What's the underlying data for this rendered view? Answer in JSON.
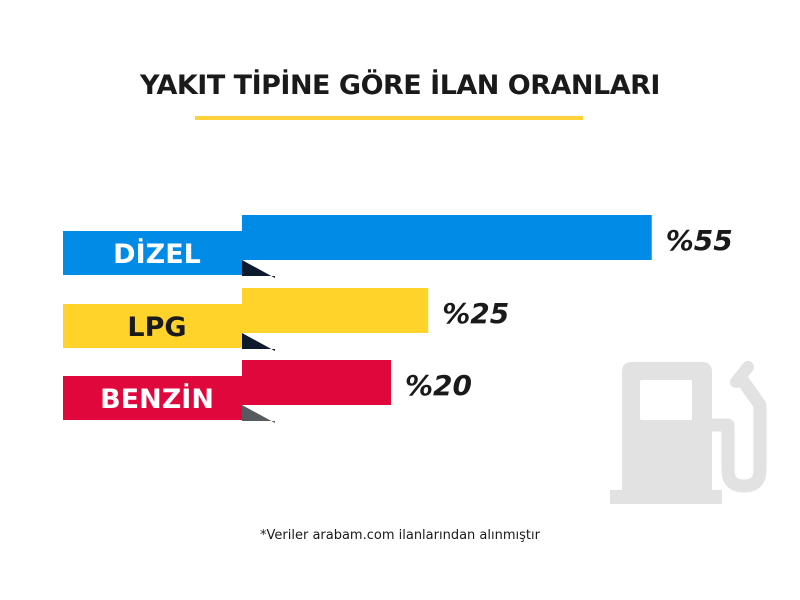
{
  "title": "YAKIT TİPİNE GÖRE İLAN ORANLARI",
  "footnote": "*Veriler arabam.com ilanlarından alınmıştır",
  "icon": "fuel-pump-icon",
  "chart_data": {
    "type": "bar",
    "orientation": "horizontal",
    "categories": [
      "DİZEL",
      "LPG",
      "BENZİN"
    ],
    "values": [
      55,
      25,
      20
    ],
    "value_labels": [
      "%55",
      "%25",
      "%20"
    ],
    "colors": [
      "#008be6",
      "#ffd329",
      "#e0073d"
    ],
    "fold_colors": [
      "#0d1a2e",
      "#0d1a2e",
      "#555b5f"
    ],
    "label_colors": [
      "#ffffff",
      "#1a1a1a",
      "#ffffff"
    ]
  }
}
